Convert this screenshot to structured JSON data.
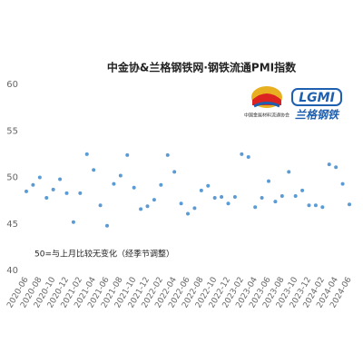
{
  "chart_data": {
    "type": "line",
    "title": "中金协&兰格钢铁网·钢铁流通PMI指数",
    "annotation": "50=与上月比较无变化（经季节调整）",
    "logos": {
      "left_caption": "中国金属材料流通协会",
      "right_mark": "LGMI",
      "right_text": "兰格钢铁"
    },
    "categories": [
      "2020-06",
      null,
      "2020-08",
      null,
      "2020-10",
      null,
      "2020-12",
      null,
      "2021-02",
      null,
      "2021-04",
      null,
      "2021-06",
      null,
      "2021-08",
      null,
      "2021-10",
      null,
      "2021-12",
      null,
      "2022-02",
      null,
      "2022-04",
      null,
      "2022-06",
      null,
      "2022-08",
      null,
      "2022-10",
      null,
      "2022-12",
      null,
      "2023-02",
      null,
      "2023-04",
      null,
      "2023-06",
      null,
      "2023-08",
      null,
      "2023-10",
      null,
      "2023-12",
      null,
      "2024-02",
      null,
      "2024-04",
      null,
      "2024-06"
    ],
    "series": [
      {
        "name": "钢铁流通PMI",
        "color": "#5b9bd5",
        "values": [
          48.5,
          49.2,
          50.0,
          47.8,
          48.7,
          49.8,
          48.3,
          45.2,
          48.3,
          52.5,
          50.8,
          47.0,
          44.8,
          49.3,
          50.2,
          52.4,
          48.9,
          46.6,
          46.9,
          47.6,
          49.2,
          52.4,
          50.6,
          47.2,
          46.1,
          46.7,
          48.6,
          49.1,
          47.8,
          47.9,
          47.2,
          47.9,
          52.5,
          52.2,
          46.8,
          47.8,
          49.6,
          47.4,
          48.0,
          50.6,
          48.0,
          48.6,
          47.0,
          47.0,
          46.8,
          51.4,
          51.1,
          49.3,
          47.1
        ]
      }
    ],
    "ylim": [
      40,
      60
    ],
    "yticks": [
      40,
      45,
      50,
      55,
      60
    ],
    "grid": false
  }
}
